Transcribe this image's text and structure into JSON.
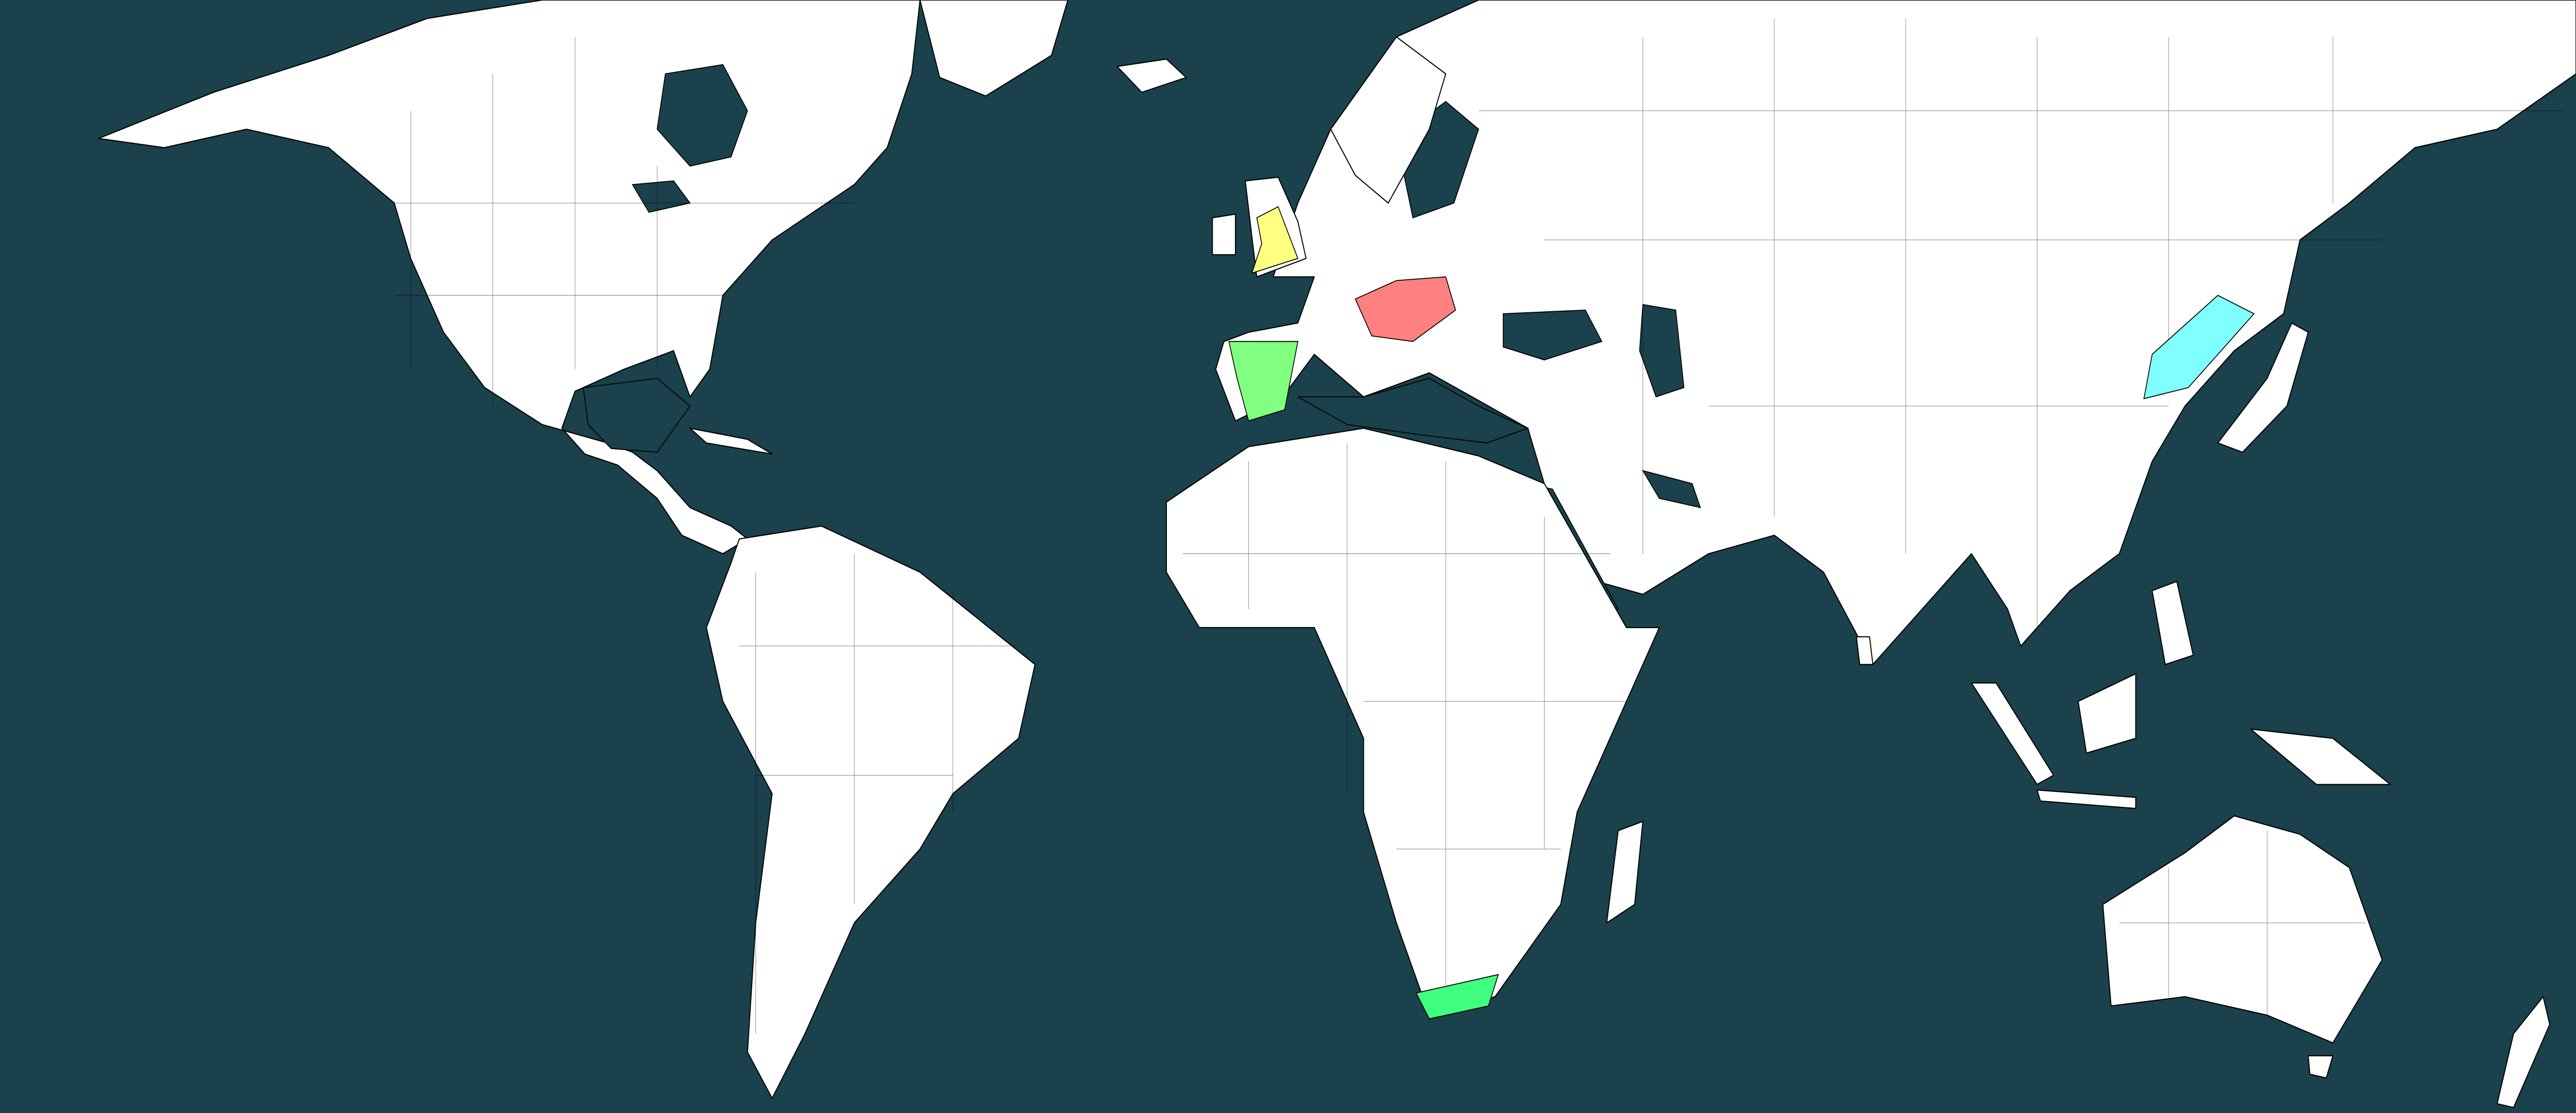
{
  "map": {
    "ocean_color": "#1a414c",
    "land_color": "#ffffff",
    "border_color": "#000000",
    "highlighted_regions": [
      {
        "id": "england",
        "color": "#ffff80"
      },
      {
        "id": "spain",
        "color": "#80ff80"
      },
      {
        "id": "austria-hungary",
        "color": "#ff8080"
      },
      {
        "id": "manchuria",
        "color": "#80ffff"
      },
      {
        "id": "south-africa",
        "color": "#40ff80"
      }
    ]
  }
}
